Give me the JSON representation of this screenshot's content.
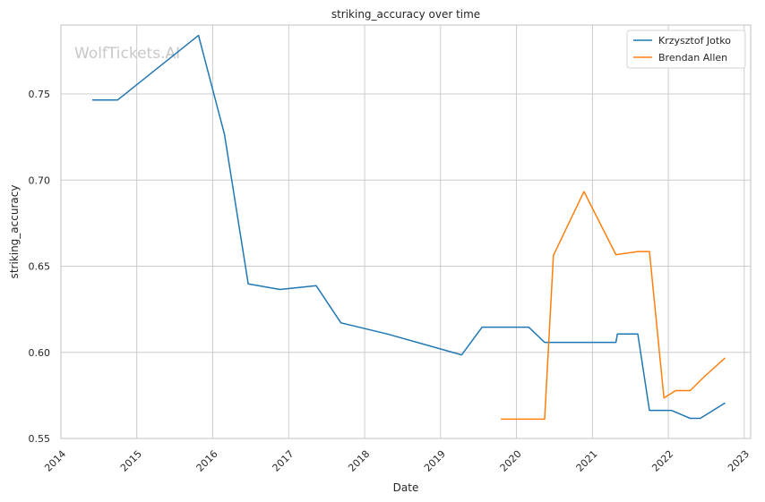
{
  "chart_data": {
    "type": "line",
    "title": "striking_accuracy over time",
    "xlabel": "Date",
    "ylabel": "striking_accuracy",
    "watermark": "WolfTickets.AI",
    "xlim": [
      "2014-01-01",
      "2023-02-01"
    ],
    "ylim": [
      0.55,
      0.79
    ],
    "x_ticks": [
      "2014",
      "2015",
      "2016",
      "2017",
      "2018",
      "2019",
      "2020",
      "2021",
      "2022",
      "2023"
    ],
    "y_ticks": [
      "0.55",
      "0.60",
      "0.65",
      "0.70",
      "0.75"
    ],
    "grid": true,
    "legend_position": "top-right",
    "series": [
      {
        "name": "Krzysztof Jotko",
        "color": "#1f77b4",
        "points": [
          [
            "2014-06-01",
            0.7465
          ],
          [
            "2014-10-01",
            0.7465
          ],
          [
            "2015-10-25",
            0.784
          ],
          [
            "2016-02-27",
            0.7265
          ],
          [
            "2016-06-20",
            0.6397
          ],
          [
            "2016-11-20",
            0.6365
          ],
          [
            "2017-05-13",
            0.6387
          ],
          [
            "2017-09-09",
            0.6171
          ],
          [
            "2018-04-21",
            0.6106
          ],
          [
            "2019-04-13",
            0.5985
          ],
          [
            "2019-07-20",
            0.6146
          ],
          [
            "2020-02-29",
            0.6146
          ],
          [
            "2020-05-16",
            0.6058
          ],
          [
            "2021-04-24",
            0.6058
          ],
          [
            "2021-05-01",
            0.6106
          ],
          [
            "2021-08-07",
            0.6106
          ],
          [
            "2021-10-02",
            0.5663
          ],
          [
            "2022-01-15",
            0.5663
          ],
          [
            "2022-04-16",
            0.5617
          ],
          [
            "2022-06-04",
            0.5617
          ],
          [
            "2022-10-01",
            0.5706
          ]
        ]
      },
      {
        "name": "Brendan Allen",
        "color": "#ff7f0e",
        "points": [
          [
            "2019-10-18",
            0.5612
          ],
          [
            "2020-05-16",
            0.5612
          ],
          [
            "2020-06-27",
            0.6563
          ],
          [
            "2020-11-21",
            0.6933
          ],
          [
            "2021-04-24",
            0.6567
          ],
          [
            "2021-08-07",
            0.6585
          ],
          [
            "2021-10-02",
            0.6585
          ],
          [
            "2021-12-11",
            0.5735
          ],
          [
            "2022-02-05",
            0.5778
          ],
          [
            "2022-04-16",
            0.5778
          ],
          [
            "2022-06-18",
            0.5853
          ],
          [
            "2022-10-01",
            0.5968
          ]
        ]
      }
    ]
  }
}
